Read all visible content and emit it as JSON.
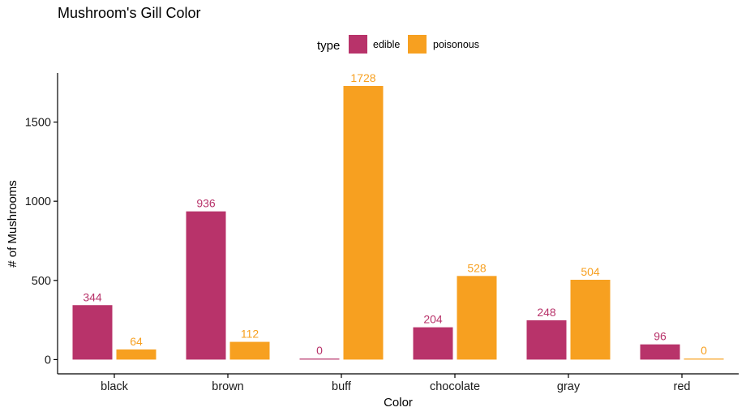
{
  "chart_data": {
    "type": "bar",
    "title": "Mushroom's Gill Color",
    "xlabel": "Color",
    "ylabel": "# of Mushrooms",
    "categories": [
      "black",
      "brown",
      "buff",
      "chocolate",
      "gray",
      "red"
    ],
    "series": [
      {
        "name": "edible",
        "color": "#b8336a",
        "values": [
          344,
          936,
          0,
          204,
          248,
          96
        ]
      },
      {
        "name": "poisonous",
        "color": "#f7a020",
        "values": [
          64,
          112,
          1728,
          528,
          504,
          0
        ]
      }
    ],
    "legend": {
      "title": "type",
      "position": "top"
    },
    "y_ticks": [
      0,
      500,
      1000,
      1500
    ],
    "ylim": [
      -90,
      1810
    ],
    "grid": false
  }
}
